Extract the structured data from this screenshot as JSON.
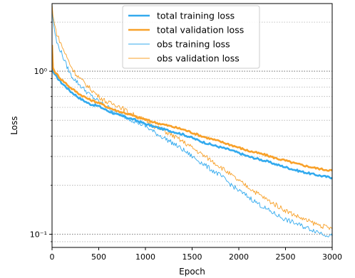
{
  "chart_data": {
    "type": "line",
    "xlabel": "Epoch",
    "ylabel": "Loss",
    "y_scale": "log",
    "xlim": [
      0,
      3000
    ],
    "ylim": [
      0.083,
      2.6
    ],
    "x_ticks": [
      0,
      500,
      1000,
      1500,
      2000,
      2500,
      3000
    ],
    "x_tick_labels": [
      "0",
      "500",
      "1000",
      "1500",
      "2000",
      "2500",
      "3000"
    ],
    "y_ticks": [
      1.0,
      0.1
    ],
    "y_tick_labels": [
      "10⁰",
      "10⁻¹"
    ],
    "grid": "horizontal dotted (major and minor)",
    "legend_position": "top-center",
    "series": [
      {
        "name": "total training loss",
        "color": "#33aaee",
        "line": "thick",
        "x": [
          0,
          10,
          25,
          50,
          100,
          150,
          200,
          300,
          400,
          500,
          600,
          700,
          800,
          900,
          1000,
          1100,
          1200,
          1300,
          1400,
          1500,
          1600,
          1700,
          1800,
          1900,
          2000,
          2100,
          2200,
          2300,
          2400,
          2500,
          2600,
          2700,
          2800,
          2900,
          3000
        ],
        "y": [
          1.35,
          1.0,
          0.96,
          0.92,
          0.85,
          0.8,
          0.75,
          0.68,
          0.63,
          0.61,
          0.57,
          0.54,
          0.52,
          0.5,
          0.475,
          0.455,
          0.44,
          0.425,
          0.41,
          0.39,
          0.37,
          0.355,
          0.342,
          0.33,
          0.315,
          0.3,
          0.29,
          0.28,
          0.268,
          0.258,
          0.248,
          0.24,
          0.233,
          0.227,
          0.222
        ]
      },
      {
        "name": "total validation loss",
        "color": "#f8a12a",
        "line": "thick",
        "x": [
          0,
          10,
          25,
          50,
          100,
          150,
          200,
          300,
          400,
          500,
          600,
          700,
          800,
          900,
          1000,
          1100,
          1200,
          1300,
          1400,
          1500,
          1600,
          1700,
          1800,
          1900,
          2000,
          2100,
          2200,
          2300,
          2400,
          2500,
          2600,
          2700,
          2800,
          2900,
          3000
        ],
        "y": [
          1.45,
          1.05,
          1.0,
          0.96,
          0.89,
          0.84,
          0.79,
          0.72,
          0.67,
          0.64,
          0.6,
          0.57,
          0.55,
          0.525,
          0.505,
          0.485,
          0.47,
          0.455,
          0.44,
          0.42,
          0.4,
          0.385,
          0.37,
          0.355,
          0.34,
          0.325,
          0.315,
          0.305,
          0.292,
          0.283,
          0.272,
          0.264,
          0.256,
          0.25,
          0.246
        ]
      },
      {
        "name": "obs training loss",
        "color": "#33aaee",
        "line": "thin",
        "x": [
          0,
          10,
          25,
          50,
          100,
          150,
          200,
          250,
          300,
          400,
          500,
          600,
          700,
          800,
          900,
          1000,
          1100,
          1200,
          1300,
          1400,
          1500,
          1600,
          1700,
          1800,
          1900,
          2000,
          2100,
          2200,
          2300,
          2400,
          2500,
          2600,
          2700,
          2800,
          2900,
          3000
        ],
        "y": [
          2.6,
          2.1,
          1.8,
          1.5,
          1.3,
          1.1,
          0.95,
          0.88,
          0.82,
          0.72,
          0.65,
          0.6,
          0.55,
          0.52,
          0.49,
          0.46,
          0.42,
          0.39,
          0.36,
          0.33,
          0.3,
          0.275,
          0.25,
          0.23,
          0.205,
          0.185,
          0.17,
          0.155,
          0.142,
          0.132,
          0.123,
          0.117,
          0.111,
          0.106,
          0.101,
          0.097
        ]
      },
      {
        "name": "obs validation loss",
        "color": "#f8a12a",
        "line": "thin",
        "x": [
          0,
          10,
          25,
          50,
          100,
          150,
          200,
          250,
          300,
          400,
          500,
          600,
          700,
          800,
          900,
          1000,
          1100,
          1200,
          1300,
          1400,
          1500,
          1600,
          1700,
          1800,
          1900,
          2000,
          2100,
          2200,
          2300,
          2400,
          2500,
          2600,
          2700,
          2800,
          2900,
          3000
        ],
        "y": [
          2.6,
          2.2,
          1.95,
          1.7,
          1.45,
          1.25,
          1.08,
          0.97,
          0.9,
          0.79,
          0.7,
          0.64,
          0.62,
          0.57,
          0.53,
          0.5,
          0.46,
          0.43,
          0.4,
          0.37,
          0.34,
          0.31,
          0.285,
          0.26,
          0.235,
          0.212,
          0.195,
          0.178,
          0.163,
          0.151,
          0.14,
          0.131,
          0.123,
          0.117,
          0.112,
          0.108
        ]
      }
    ]
  }
}
